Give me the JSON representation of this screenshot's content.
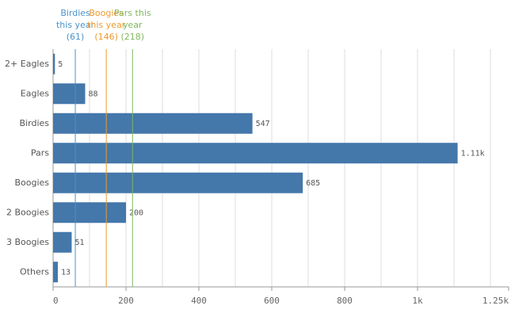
{
  "chart_data": {
    "type": "bar",
    "orientation": "horizontal",
    "categories": [
      "2+ Eagles",
      "Eagles",
      "Birdies",
      "Pars",
      "Boogies",
      "2 Boogies",
      "3 Boogies",
      "Others"
    ],
    "values": [
      5,
      88,
      547,
      1110,
      685,
      200,
      51,
      13
    ],
    "value_labels": [
      "5",
      "88",
      "547",
      "1.11k",
      "685",
      "200",
      "51",
      "13"
    ],
    "color": "#4477aa",
    "xlim": [
      0,
      1250
    ],
    "xticks": [
      0,
      200,
      400,
      600,
      800,
      {
        "value": 1000,
        "label": "1k"
      },
      {
        "value": 1250,
        "label": "1.25k"
      }
    ],
    "grid_xticks": [
      100,
      200,
      300,
      400,
      500,
      600,
      700,
      800,
      900,
      1000,
      1100,
      1200
    ],
    "grid": true,
    "reference_lines": [
      {
        "label": "Birdies this year",
        "value": 61,
        "value_label": "(61)",
        "color": "#4a93cc"
      },
      {
        "label": "Boogies this year",
        "value": 146,
        "value_label": "(146)",
        "color": "#ee9a2c"
      },
      {
        "label": "Pars this year",
        "value": 218,
        "value_label": "(218)",
        "color": "#7fb861"
      }
    ]
  }
}
